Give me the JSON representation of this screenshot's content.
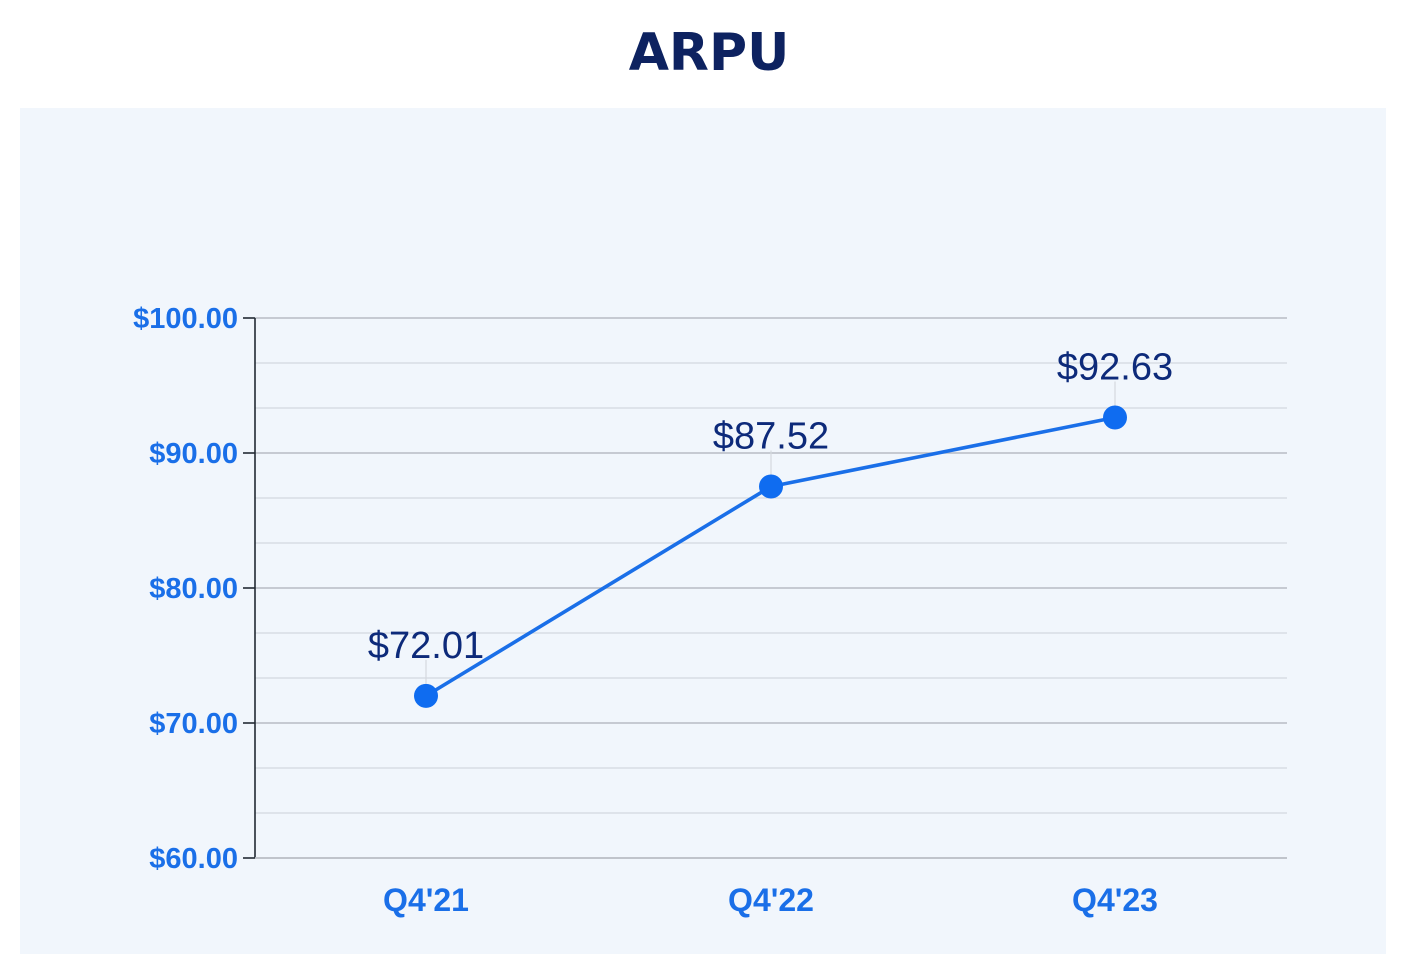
{
  "title": "ARPU",
  "colors": {
    "title": "#0d2260",
    "panel_background": "#f1f6fc",
    "series_line": "#1a6fe8",
    "series_marker": "#0f6cf0",
    "tick_labels": "#1a6fe8",
    "data_labels": "#0d2a7a",
    "major_grid": "#b8bcc4",
    "minor_grid": "#d4d8de",
    "axis": "#222a33"
  },
  "chart_data": {
    "type": "line",
    "title": "ARPU",
    "categories": [
      "Q4'21",
      "Q4'22",
      "Q4'23"
    ],
    "series": [
      {
        "values": [
          72.01,
          87.52,
          92.63
        ],
        "data_labels": [
          "$72.01",
          "$87.52",
          "$92.63"
        ]
      }
    ],
    "xlabel": "",
    "ylabel": "",
    "ylim": [
      60,
      100
    ],
    "y_ticks": [
      60,
      70,
      80,
      90,
      100
    ],
    "y_tick_labels": [
      "$60.00",
      "$70.00",
      "$80.00",
      "$90.00",
      "$100.00"
    ],
    "y_minor_step": 3.3333,
    "grid": true,
    "legend": "none"
  }
}
